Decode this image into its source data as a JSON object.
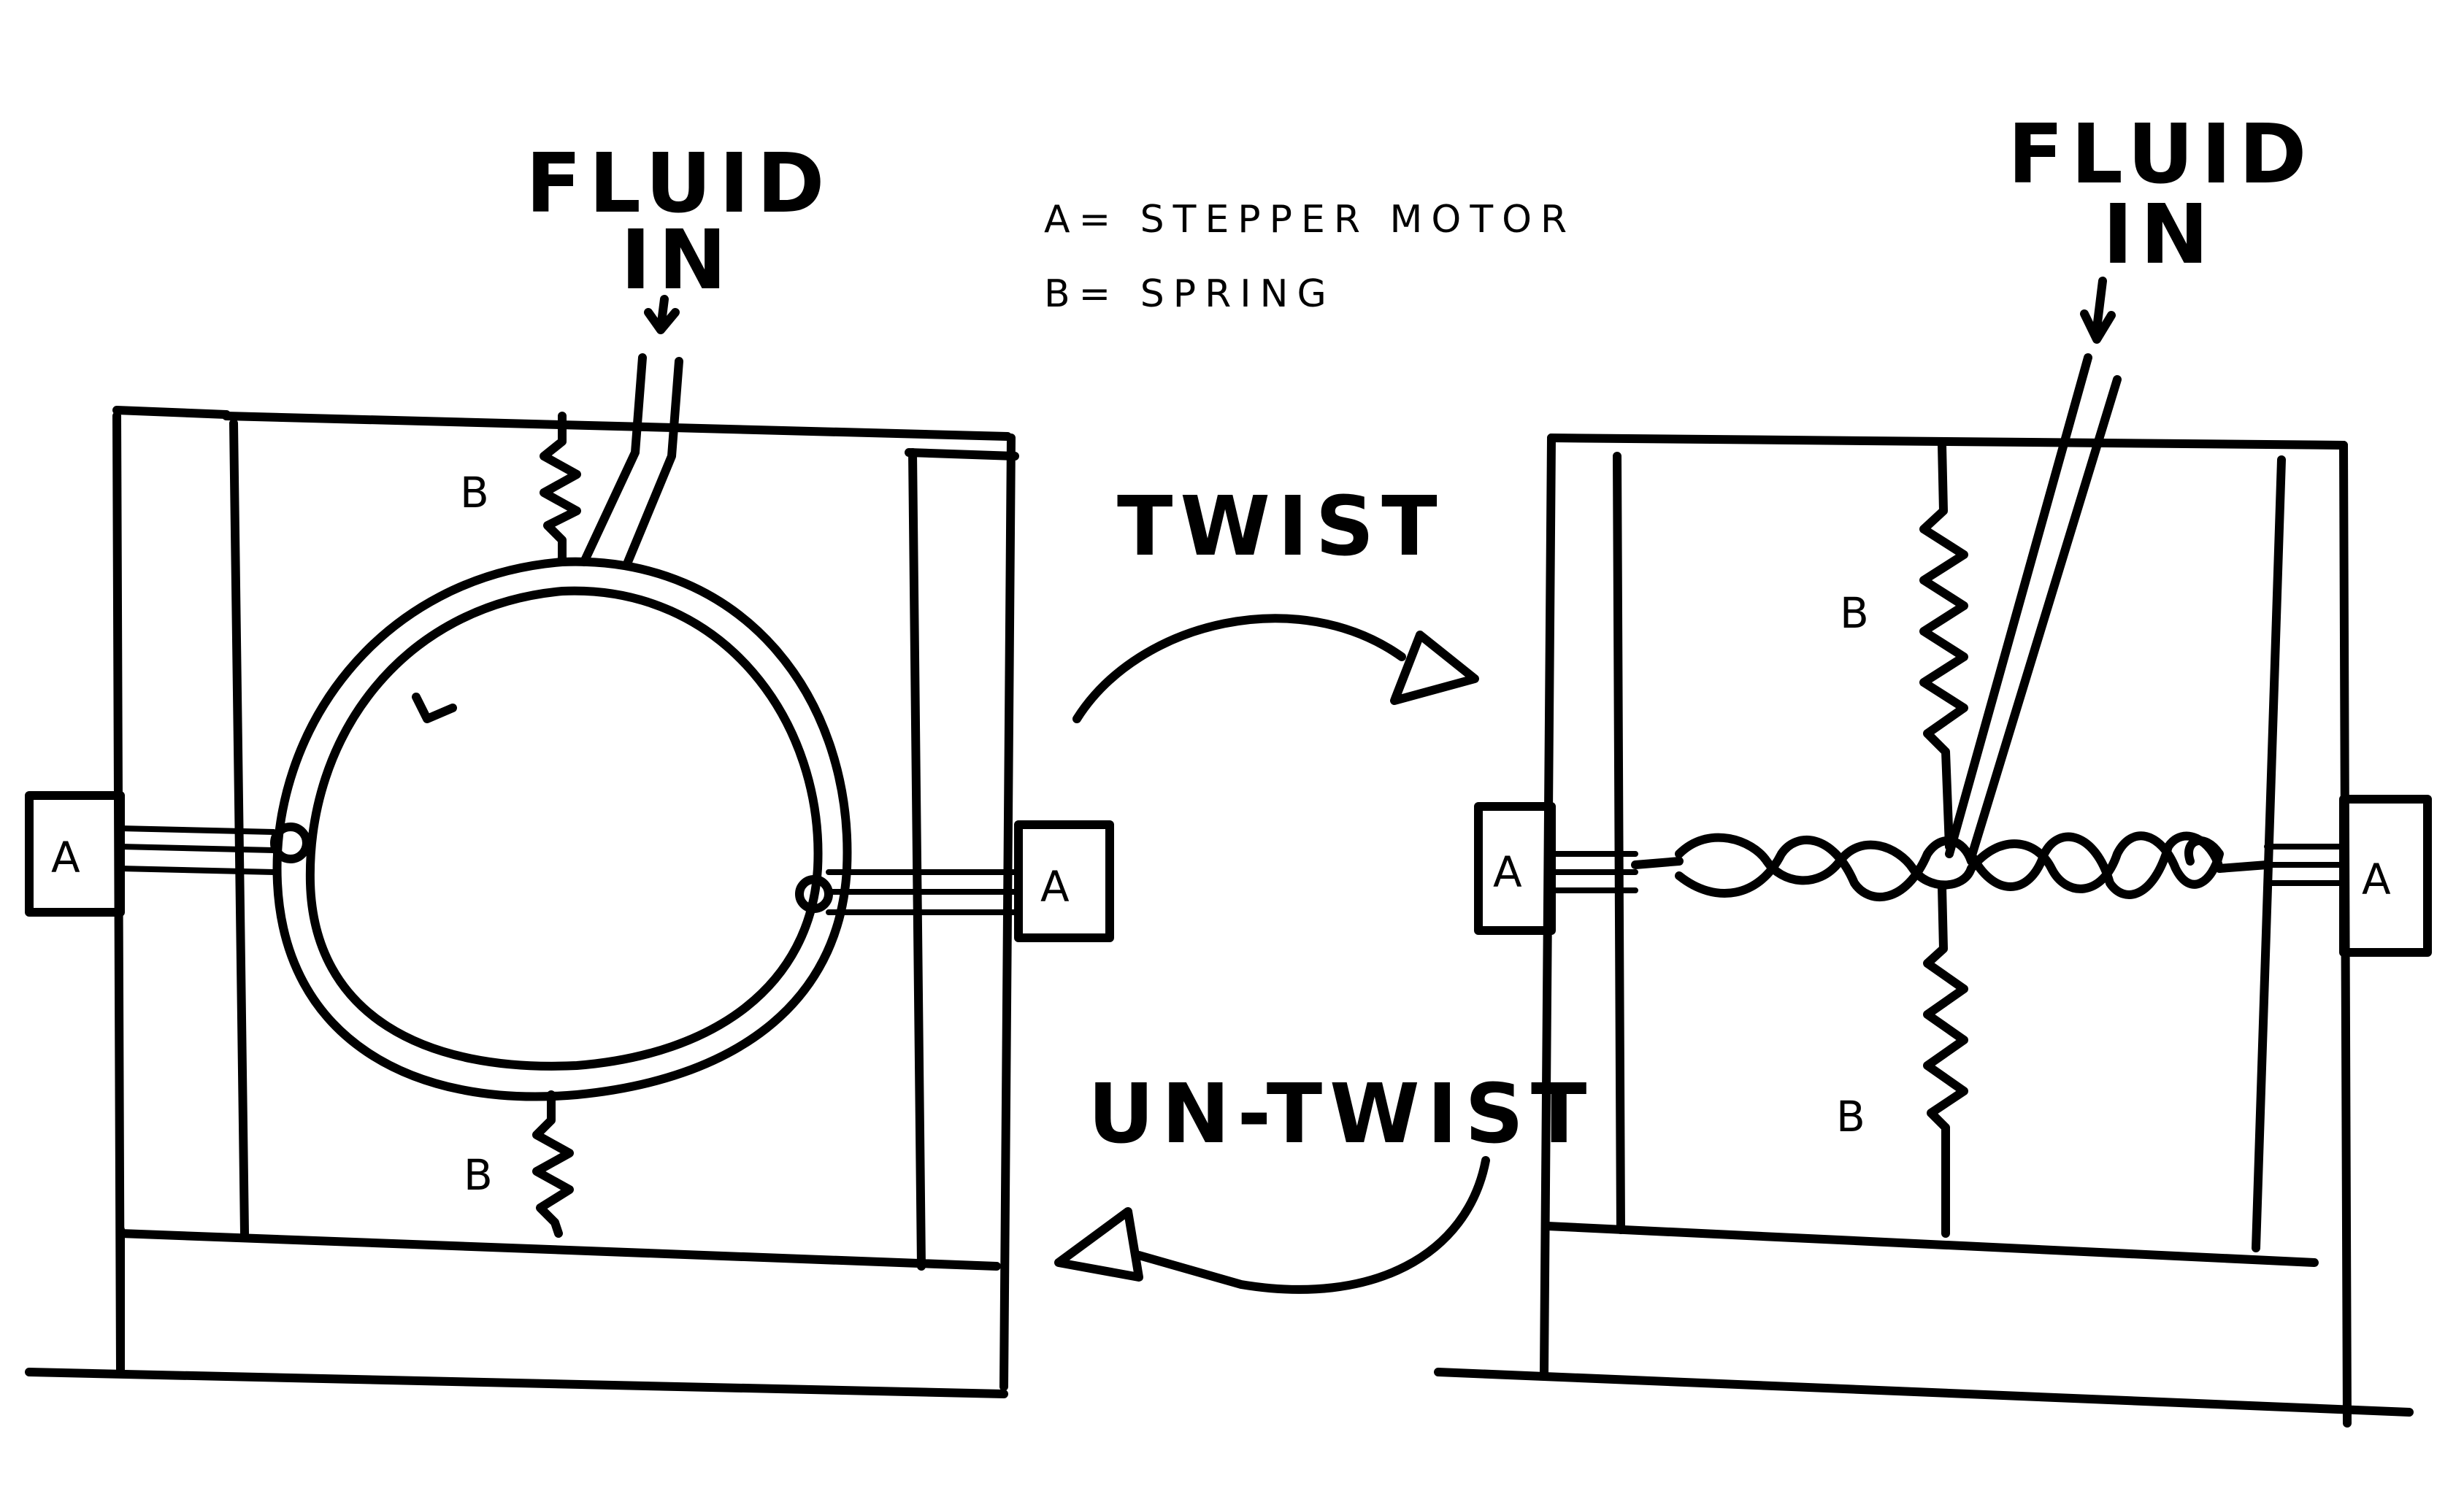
{
  "legend": {
    "line1": "A= STEPPER MOTOR",
    "line2": "B= SPRING"
  },
  "left_panel": {
    "fluid_line1": "FLUID",
    "fluid_line2": "IN",
    "motor_left": "A",
    "motor_right": "A",
    "spring_top": "B",
    "spring_bottom": "B"
  },
  "right_panel": {
    "fluid_line1": "FLUID",
    "fluid_line2": "IN",
    "motor_left": "A",
    "motor_right": "A",
    "spring_top": "B",
    "spring_bottom": "B"
  },
  "arrows": {
    "twist": "TWIST",
    "untwist": "UN-TWIST"
  }
}
